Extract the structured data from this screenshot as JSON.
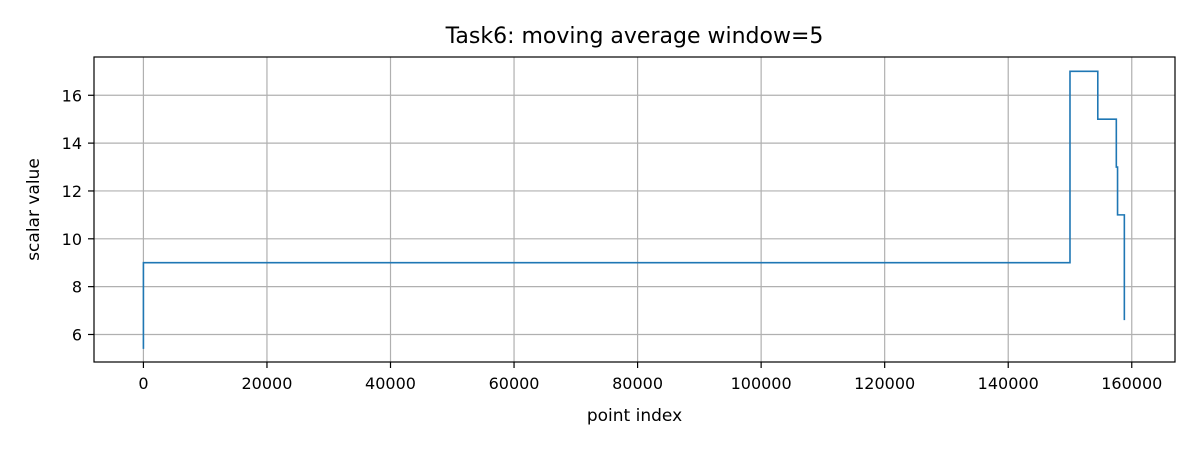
{
  "chart_data": {
    "type": "line",
    "title": "Task6: moving average window=5",
    "xlabel": "point index",
    "ylabel": "scalar value",
    "xlim": [
      -8000,
      167000
    ],
    "ylim": [
      4.85,
      17.6
    ],
    "xticks": [
      0,
      20000,
      40000,
      60000,
      80000,
      100000,
      120000,
      140000,
      160000
    ],
    "yticks": [
      6,
      8,
      10,
      12,
      14,
      16
    ],
    "grid": true,
    "series": [
      {
        "color": "#1f77b4",
        "x": [
          0,
          0,
          150000,
          150000,
          154500,
          154500,
          157500,
          157500,
          157700,
          157700,
          158800,
          158800
        ],
        "y": [
          5.4,
          9.0,
          9.0,
          17.0,
          17.0,
          15.0,
          15.0,
          13.0,
          13.0,
          11.0,
          11.0,
          6.6
        ]
      }
    ]
  }
}
